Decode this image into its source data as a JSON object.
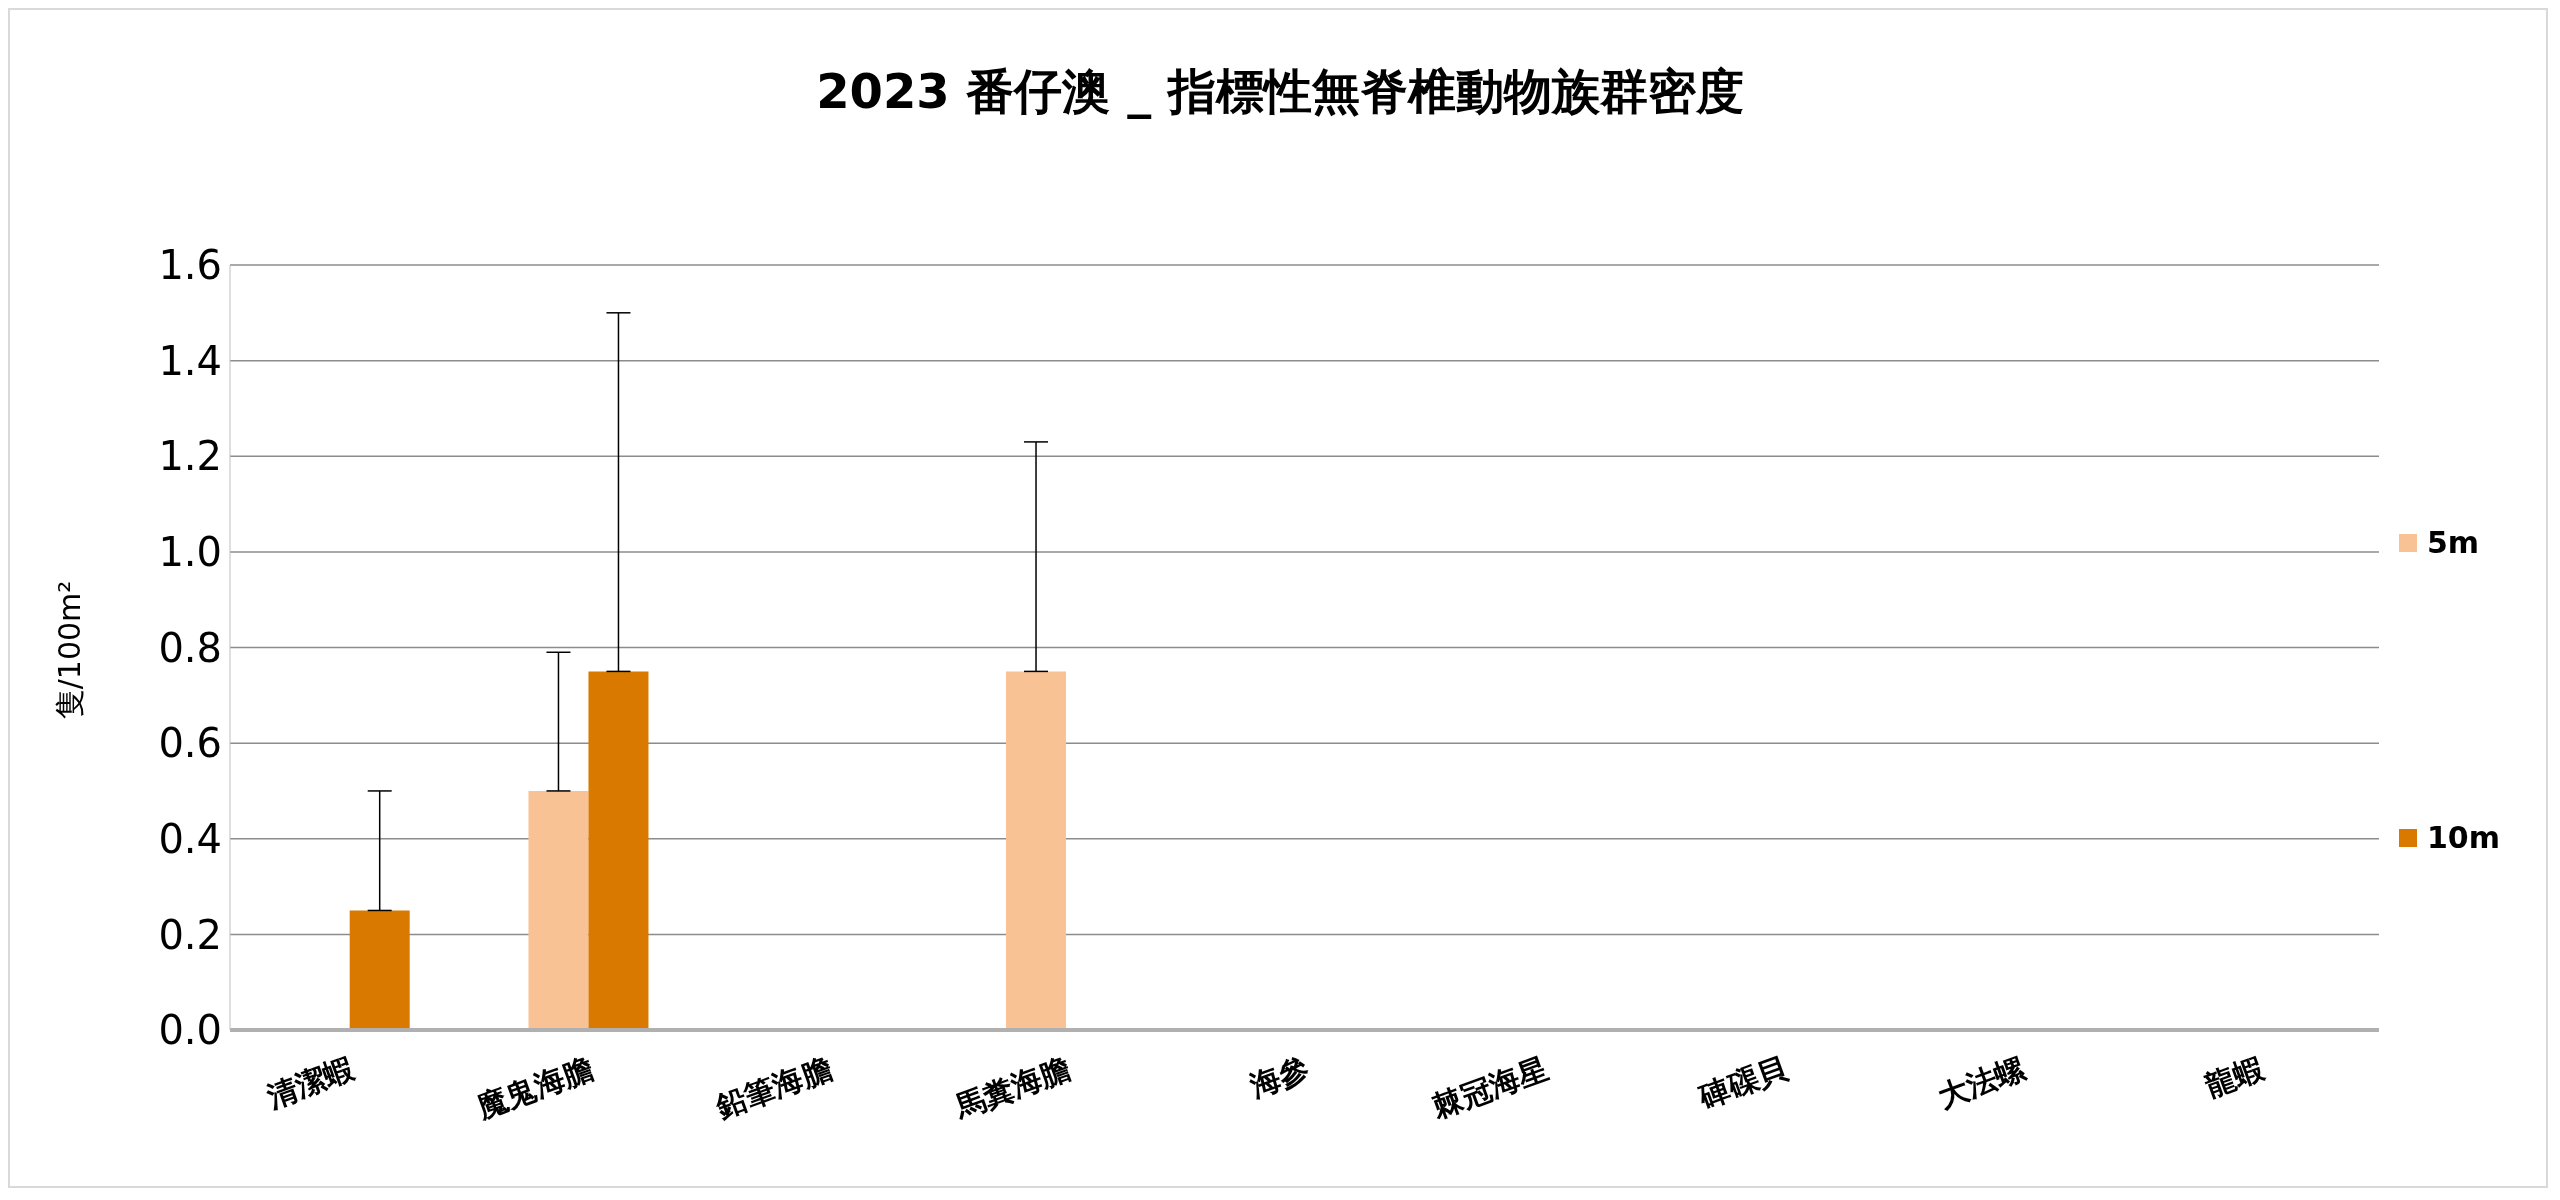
{
  "chart_data": {
    "type": "bar",
    "title": "2023 番仔澳 _ 指標性無脊椎動物族群密度",
    "ylabel": "隻/100m²",
    "categories": [
      "清潔蝦",
      "魔鬼海膽",
      "鉛筆海膽",
      "馬糞海膽",
      "海參",
      "棘冠海星",
      "硨磲貝",
      "大法螺",
      "龍蝦"
    ],
    "series": [
      {
        "name": "5m",
        "color": "#f9c295",
        "values": [
          0,
          0.5,
          0,
          0.75,
          0,
          0,
          0,
          0,
          0
        ],
        "errors": [
          null,
          [
            0.5,
            0.79
          ],
          null,
          [
            0.75,
            1.23
          ],
          null,
          null,
          null,
          null,
          null
        ]
      },
      {
        "name": "10m",
        "color": "#d97900",
        "values": [
          0.25,
          0.75,
          0,
          0,
          0,
          0,
          0,
          0,
          0
        ],
        "errors": [
          [
            0.25,
            0.5
          ],
          [
            0.75,
            1.5
          ],
          null,
          null,
          null,
          null,
          null,
          null,
          null
        ]
      }
    ],
    "ylim": [
      0,
      1.6
    ],
    "yticks": [
      {
        "value": 0,
        "label": "0.0"
      },
      0.2,
      0.4,
      0.6,
      0.8,
      {
        "value": 1,
        "label": "1.0"
      },
      1.2,
      1.4,
      1.6
    ],
    "grid": "y",
    "legend": "right"
  }
}
